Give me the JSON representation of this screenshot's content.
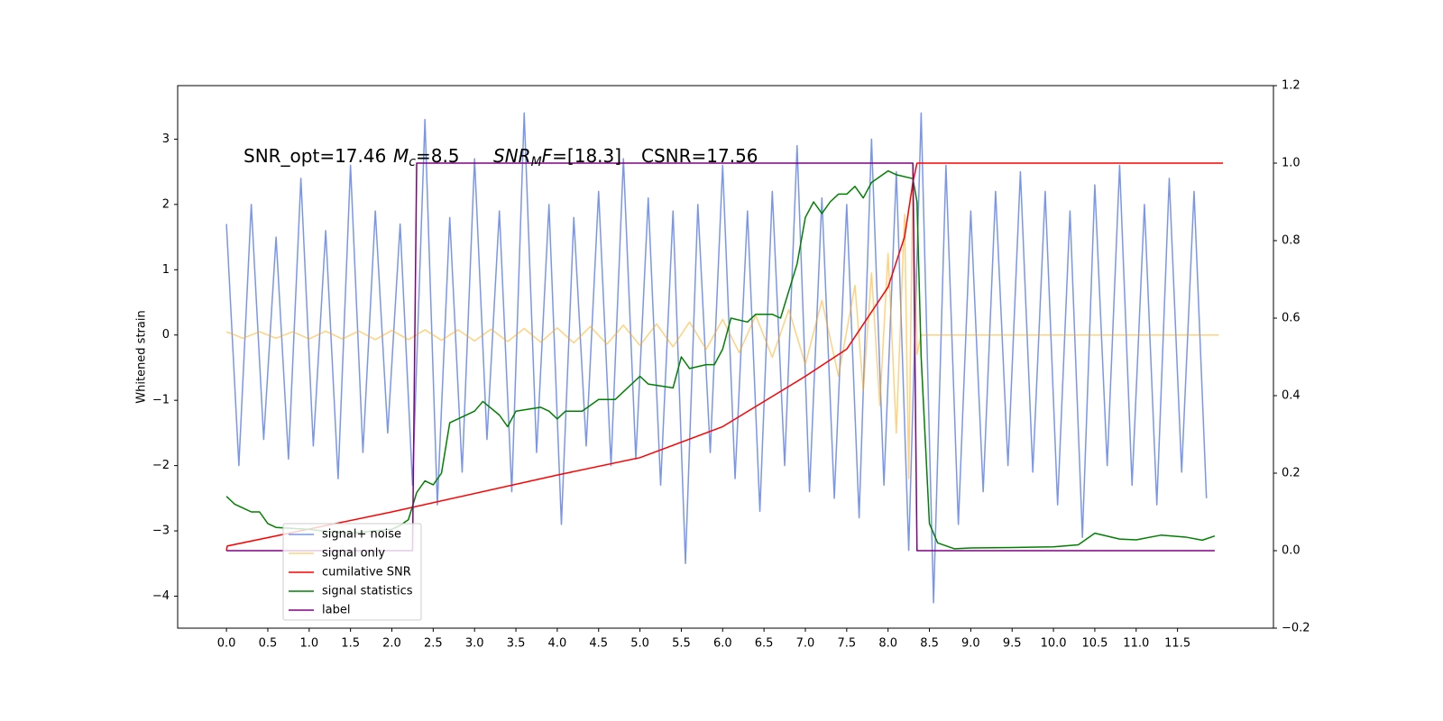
{
  "chart_data": {
    "type": "line",
    "annotation": [
      "SNR_opt=17.46",
      "M",
      "c",
      "=8.5",
      "SNR",
      "M",
      "F",
      "=[18.3]",
      "CSNR=17.56"
    ],
    "ylabel": "Whitened strain",
    "xlim": [
      -0.59,
      12.66
    ],
    "ylim": [
      -4.49,
      3.82
    ],
    "y2lim": [
      -0.2,
      1.2
    ],
    "xticks": [
      {
        "value": 0,
        "label": "0.0"
      },
      0.5,
      {
        "value": 1,
        "label": "1.0"
      },
      1.5,
      {
        "value": 2,
        "label": "2.0"
      },
      2.5,
      {
        "value": 3,
        "label": "3.0"
      },
      3.5,
      {
        "value": 4,
        "label": "4.0"
      },
      4.5,
      {
        "value": 5,
        "label": "5.0"
      },
      5.5,
      {
        "value": 6,
        "label": "6.0"
      },
      6.5,
      {
        "value": 7,
        "label": "7.0"
      },
      7.5,
      {
        "value": 8,
        "label": "8.0"
      },
      8.5,
      {
        "value": 9,
        "label": "9.0"
      },
      9.5,
      {
        "value": 10,
        "label": "10.0"
      },
      10.5,
      {
        "value": 11,
        "label": "11.0"
      },
      11.5
    ],
    "yticks": [
      {
        "value": -4,
        "label": "−4"
      },
      {
        "value": -3,
        "label": "−3"
      },
      {
        "value": -2,
        "label": "−2"
      },
      {
        "value": -1,
        "label": "−1"
      },
      0,
      1,
      2,
      3
    ],
    "y2ticks": [
      {
        "value": -0.2,
        "label": "−0.2"
      },
      {
        "value": 0,
        "label": "0.0"
      },
      0.2,
      0.4,
      0.6,
      0.8,
      {
        "value": 1,
        "label": "1.0"
      },
      1.2
    ],
    "legend": "lower left",
    "series": [
      {
        "name": "signal+ noise",
        "color": "#7a96ea",
        "alpha": 1,
        "x": [
          0,
          0.15,
          0.3,
          0.45,
          0.6,
          0.75,
          0.9,
          1.05,
          1.2,
          1.35,
          1.5,
          1.65,
          1.8,
          1.95,
          2.1,
          2.25,
          2.4,
          2.55,
          2.7,
          2.85,
          3.0,
          3.15,
          3.3,
          3.45,
          3.6,
          3.75,
          3.9,
          4.05,
          4.2,
          4.35,
          4.5,
          4.65,
          4.8,
          4.95,
          5.1,
          5.25,
          5.4,
          5.55,
          5.7,
          5.85,
          6.0,
          6.15,
          6.3,
          6.45,
          6.6,
          6.75,
          6.9,
          7.05,
          7.2,
          7.35,
          7.5,
          7.65,
          7.8,
          7.95,
          8.1,
          8.25,
          8.4,
          8.55,
          8.7,
          8.85,
          9.0,
          9.15,
          9.3,
          9.45,
          9.6,
          9.75,
          9.9,
          10.05,
          10.2,
          10.35,
          10.5,
          10.65,
          10.8,
          10.95,
          11.1,
          11.25,
          11.4,
          11.55,
          11.7,
          11.85
        ],
        "values": [
          1.7,
          -2.0,
          2.0,
          -1.6,
          1.5,
          -1.9,
          2.4,
          -1.7,
          1.6,
          -2.2,
          2.6,
          -1.8,
          1.9,
          -1.5,
          1.7,
          -2.3,
          3.3,
          -2.6,
          1.8,
          -2.1,
          2.7,
          -1.6,
          1.9,
          -2.4,
          3.4,
          -1.8,
          2.0,
          -2.9,
          1.8,
          -1.7,
          2.2,
          -2.0,
          2.7,
          -1.9,
          2.1,
          -2.3,
          1.9,
          -3.5,
          2.0,
          -1.8,
          2.6,
          -2.2,
          1.9,
          -2.7,
          2.2,
          -2.0,
          2.9,
          -2.4,
          2.1,
          -2.5,
          2.0,
          -2.8,
          3.0,
          -2.3,
          2.5,
          -3.3,
          3.4,
          -4.1,
          2.6,
          -2.9,
          1.9,
          -2.4,
          2.2,
          -2.0,
          2.5,
          -2.1,
          2.2,
          -2.6,
          1.9,
          -3.1,
          2.3,
          -2.0,
          2.6,
          -2.3,
          2.0,
          -2.6,
          2.4,
          -2.1,
          2.2,
          -2.5
        ]
      },
      {
        "name": "signal only",
        "color": "orange",
        "alpha": 0.5,
        "x": [
          0,
          0.2,
          0.4,
          0.6,
          0.8,
          1.0,
          1.2,
          1.4,
          1.6,
          1.8,
          2.0,
          2.2,
          2.4,
          2.6,
          2.8,
          3.0,
          3.2,
          3.4,
          3.6,
          3.8,
          4.0,
          4.2,
          4.4,
          4.6,
          4.8,
          5.0,
          5.2,
          5.4,
          5.6,
          5.8,
          6.0,
          6.2,
          6.4,
          6.6,
          6.8,
          7.0,
          7.2,
          7.4,
          7.6,
          7.7,
          7.8,
          7.9,
          8.0,
          8.1,
          8.2,
          8.25,
          8.3,
          8.35,
          8.4,
          12.0
        ],
        "values": [
          0.05,
          -0.05,
          0.05,
          -0.05,
          0.05,
          -0.06,
          0.06,
          -0.06,
          0.06,
          -0.07,
          0.07,
          -0.07,
          0.08,
          -0.08,
          0.08,
          -0.09,
          0.09,
          -0.1,
          0.1,
          -0.11,
          0.11,
          -0.12,
          0.13,
          -0.14,
          0.15,
          -0.16,
          0.17,
          -0.18,
          0.2,
          -0.22,
          0.24,
          -0.27,
          0.3,
          -0.34,
          0.39,
          -0.45,
          0.53,
          -0.63,
          0.76,
          -0.85,
          0.95,
          -1.08,
          1.25,
          -1.5,
          1.85,
          -2.2,
          2.5,
          -0.3,
          0,
          0
        ]
      },
      {
        "name": "cumilative SNR",
        "color": "red",
        "alpha": 1,
        "axis": "y2",
        "x": [
          0,
          0.01,
          2.0,
          4.0,
          5.0,
          6.0,
          7.0,
          7.5,
          8.0,
          8.2,
          8.3,
          8.35,
          12.05
        ],
        "values": [
          0,
          0.012,
          0.1,
          0.195,
          0.24,
          0.32,
          0.45,
          0.52,
          0.68,
          0.81,
          0.95,
          1.0,
          1.0
        ]
      },
      {
        "name": "signal statistics",
        "color": "green",
        "alpha": 1,
        "axis": "y2",
        "x": [
          0,
          0.1,
          0.2,
          0.3,
          0.4,
          0.5,
          0.6,
          1.0,
          1.2,
          1.5,
          2.0,
          2.1,
          2.2,
          2.3,
          2.4,
          2.5,
          2.6,
          2.7,
          2.8,
          3.0,
          3.1,
          3.3,
          3.4,
          3.5,
          3.8,
          3.9,
          4.0,
          4.1,
          4.3,
          4.5,
          4.7,
          4.8,
          5.0,
          5.1,
          5.4,
          5.5,
          5.6,
          5.8,
          5.9,
          6.0,
          6.1,
          6.3,
          6.4,
          6.6,
          6.7,
          6.9,
          7.0,
          7.1,
          7.2,
          7.3,
          7.4,
          7.5,
          7.6,
          7.7,
          7.8,
          8.0,
          8.1,
          8.3,
          8.35,
          8.4,
          8.5,
          8.6,
          8.8,
          9.0,
          9.5,
          10.0,
          10.3,
          10.5,
          10.8,
          11.0,
          11.3,
          11.6,
          11.8,
          11.95
        ],
        "values": [
          0.14,
          0.12,
          0.11,
          0.1,
          0.1,
          0.07,
          0.06,
          0.055,
          0.05,
          0.045,
          0.055,
          0.065,
          0.08,
          0.15,
          0.18,
          0.17,
          0.2,
          0.33,
          0.34,
          0.36,
          0.385,
          0.35,
          0.32,
          0.36,
          0.37,
          0.36,
          0.34,
          0.36,
          0.36,
          0.39,
          0.39,
          0.41,
          0.45,
          0.43,
          0.42,
          0.5,
          0.47,
          0.48,
          0.48,
          0.52,
          0.6,
          0.59,
          0.61,
          0.61,
          0.6,
          0.74,
          0.86,
          0.9,
          0.87,
          0.9,
          0.92,
          0.92,
          0.94,
          0.91,
          0.95,
          0.98,
          0.97,
          0.96,
          0.9,
          0.5,
          0.07,
          0.02,
          0.005,
          0.007,
          0.008,
          0.01,
          0.015,
          0.045,
          0.03,
          0.028,
          0.04,
          0.035,
          0.027,
          0.038
        ]
      },
      {
        "name": "label",
        "color": "purple",
        "alpha": 1,
        "axis": "y2",
        "x": [
          0,
          2.25,
          2.3,
          8.3,
          8.35,
          11.95
        ],
        "values": [
          0,
          0,
          1,
          1,
          0,
          0
        ]
      }
    ]
  }
}
